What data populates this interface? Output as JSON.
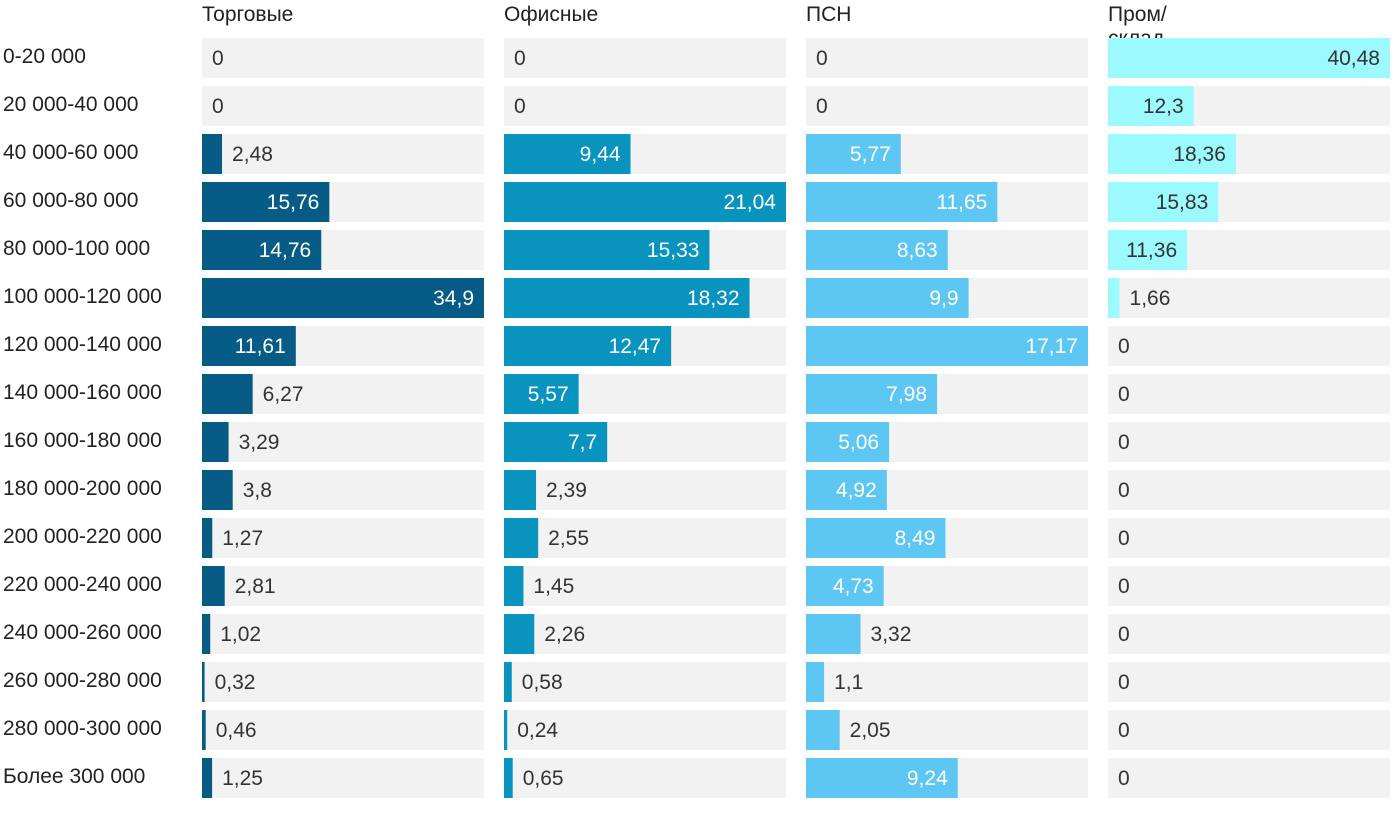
{
  "chart_data": {
    "type": "bar",
    "orientation": "horizontal",
    "layout": "small-multiples",
    "categories": [
      "0-20 000",
      "20 000-40 000",
      "40 000-60 000",
      "60 000-80 000",
      "80 000-100 000",
      "100 000-120 000",
      "120 000-140 000",
      "140 000-160 000",
      "160 000-180 000",
      "180 000-200 000",
      "200 000-220 000",
      "220 000-240 000",
      "240 000-260 000",
      "260 000-280 000",
      "280 000-300 000",
      "Более 300 000"
    ],
    "series": [
      {
        "name": "Торговые",
        "color": "#075c85",
        "xlim": [
          0,
          34.9
        ],
        "values": [
          0,
          0,
          2.48,
          15.76,
          14.76,
          34.9,
          11.61,
          6.27,
          3.29,
          3.8,
          1.27,
          2.81,
          1.02,
          0.32,
          0.46,
          1.25
        ],
        "labels": [
          "0",
          "0",
          "2,48",
          "15,76",
          "14,76",
          "34,9",
          "11,61",
          "6,27",
          "3,29",
          "3,8",
          "1,27",
          "2,81",
          "1,02",
          "0,32",
          "0,46",
          "1,25"
        ]
      },
      {
        "name": "Офисные",
        "color": "#0894be",
        "xlim": [
          0,
          21.04
        ],
        "values": [
          0,
          0,
          9.44,
          21.04,
          15.33,
          18.32,
          12.47,
          5.57,
          7.7,
          2.39,
          2.55,
          1.45,
          2.26,
          0.58,
          0.24,
          0.65
        ],
        "labels": [
          "0",
          "0",
          "9,44",
          "21,04",
          "15,33",
          "18,32",
          "12,47",
          "5,57",
          "7,7",
          "2,39",
          "2,55",
          "1,45",
          "2,26",
          "0,58",
          "0,24",
          "0,65"
        ]
      },
      {
        "name": "ПСН",
        "color": "#5dc6f2",
        "xlim": [
          0,
          17.17
        ],
        "values": [
          0,
          0,
          5.77,
          11.65,
          8.63,
          9.9,
          17.17,
          7.98,
          5.06,
          4.92,
          8.49,
          4.73,
          3.32,
          1.1,
          2.05,
          9.24
        ],
        "labels": [
          "0",
          "0",
          "5,77",
          "11,65",
          "8,63",
          "9,9",
          "17,17",
          "7,98",
          "5,06",
          "4,92",
          "8,49",
          "4,73",
          "3,32",
          "1,1",
          "2,05",
          "9,24"
        ]
      },
      {
        "name": "Пром/склад",
        "color": "#9cf9fd",
        "xlim": [
          0,
          40.48
        ],
        "values": [
          40.48,
          12.3,
          18.36,
          15.83,
          11.36,
          1.66,
          0,
          0,
          0,
          0,
          0,
          0,
          0,
          0,
          0,
          0
        ],
        "labels": [
          "40,48",
          "12,3",
          "18,36",
          "15,83",
          "11,36",
          "1,66",
          "0",
          "0",
          "0",
          "0",
          "0",
          "0",
          "0",
          "0",
          "0",
          "0"
        ]
      }
    ],
    "track_color": "#f2f2f2",
    "value_labels": true,
    "grid": false,
    "legend": "none"
  }
}
